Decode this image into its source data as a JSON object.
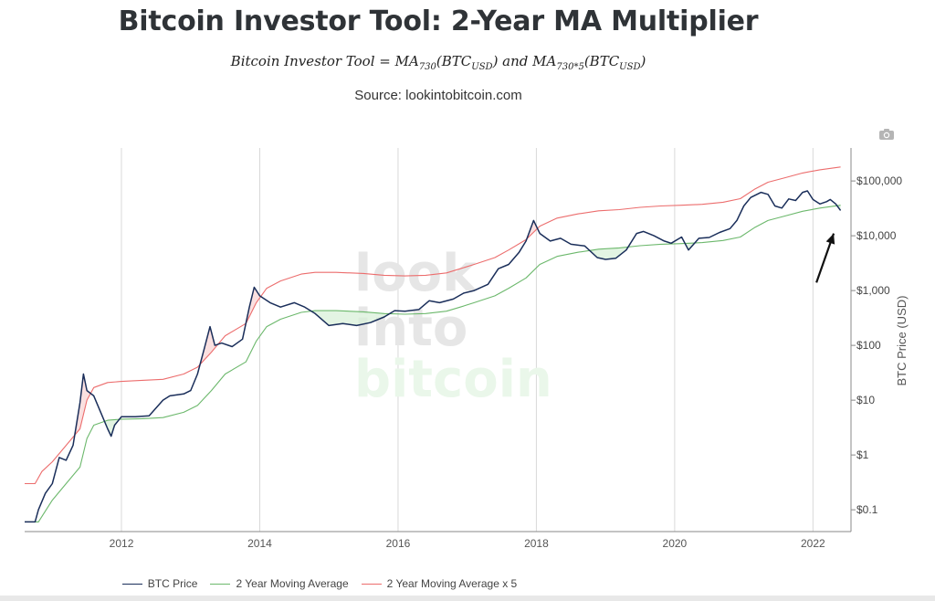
{
  "header": {
    "title": "Bitcoin Investor Tool: 2-Year MA Multiplier",
    "formula_prefix": "Bitcoin Investor Tool = MA",
    "formula_sub1": "730",
    "formula_mid": "(BTC",
    "formula_sub2": "USD",
    "formula_and": ") and MA",
    "formula_sub3": "730*5",
    "formula_mid2": "(BTC",
    "formula_sub4": "USD",
    "formula_end": ")",
    "source": "Source: lookintobitcoin.com"
  },
  "watermark": {
    "line1": "look",
    "line2": "into",
    "line3": "bitcoin"
  },
  "colors": {
    "btc": "#1a2e5a",
    "ma": "#6cb86c",
    "ma5": "#ec6d6d",
    "grid": "#d9d9d9",
    "fill_green": "#d7f0d7",
    "fill_red": "#f8d3d3"
  },
  "icons": {
    "camera": "camera-icon",
    "arrow": "arrow-annotation-icon"
  },
  "chart_data": {
    "type": "line",
    "title": "Bitcoin Investor Tool: 2-Year MA Multiplier",
    "xlabel": "",
    "ylabel": "BTC Price (USD)",
    "y_scale": "log",
    "xlim": [
      2010.6,
      2022.55
    ],
    "ylim": [
      0.04,
      400000
    ],
    "x_ticks": [
      2012,
      2014,
      2016,
      2018,
      2020,
      2022
    ],
    "x_tick_labels": [
      "2012",
      "2014",
      "2016",
      "2018",
      "2020",
      "2022"
    ],
    "y_ticks": [
      0.1,
      1,
      10,
      100,
      1000,
      10000,
      100000
    ],
    "y_tick_labels": [
      "$0.1",
      "$1",
      "$10",
      "$100",
      "$1,000",
      "$10,000",
      "$100,000"
    ],
    "grid": "vertical",
    "legend": "bottom-center",
    "series": [
      {
        "name": "BTC Price",
        "color": "#1a2e5a",
        "points": [
          [
            2010.6,
            0.06
          ],
          [
            2010.75,
            0.06
          ],
          [
            2010.8,
            0.1
          ],
          [
            2010.9,
            0.2
          ],
          [
            2011.0,
            0.3
          ],
          [
            2011.1,
            0.9
          ],
          [
            2011.2,
            0.8
          ],
          [
            2011.3,
            1.5
          ],
          [
            2011.4,
            9
          ],
          [
            2011.45,
            30
          ],
          [
            2011.5,
            15
          ],
          [
            2011.6,
            12
          ],
          [
            2011.7,
            6
          ],
          [
            2011.8,
            3
          ],
          [
            2011.85,
            2.2
          ],
          [
            2011.9,
            3.5
          ],
          [
            2012.0,
            5
          ],
          [
            2012.2,
            5
          ],
          [
            2012.4,
            5.2
          ],
          [
            2012.6,
            10
          ],
          [
            2012.7,
            12
          ],
          [
            2012.9,
            13
          ],
          [
            2013.0,
            15
          ],
          [
            2013.1,
            30
          ],
          [
            2013.2,
            90
          ],
          [
            2013.28,
            220
          ],
          [
            2013.35,
            100
          ],
          [
            2013.45,
            110
          ],
          [
            2013.6,
            95
          ],
          [
            2013.75,
            130
          ],
          [
            2013.85,
            500
          ],
          [
            2013.92,
            1150
          ],
          [
            2014.0,
            800
          ],
          [
            2014.15,
            600
          ],
          [
            2014.3,
            500
          ],
          [
            2014.5,
            600
          ],
          [
            2014.65,
            500
          ],
          [
            2014.8,
            380
          ],
          [
            2015.0,
            230
          ],
          [
            2015.2,
            250
          ],
          [
            2015.4,
            230
          ],
          [
            2015.6,
            260
          ],
          [
            2015.8,
            330
          ],
          [
            2015.95,
            430
          ],
          [
            2016.1,
            420
          ],
          [
            2016.3,
            450
          ],
          [
            2016.45,
            650
          ],
          [
            2016.6,
            600
          ],
          [
            2016.8,
            700
          ],
          [
            2016.95,
            900
          ],
          [
            2017.1,
            1000
          ],
          [
            2017.3,
            1300
          ],
          [
            2017.45,
            2500
          ],
          [
            2017.6,
            3000
          ],
          [
            2017.75,
            5000
          ],
          [
            2017.85,
            8000
          ],
          [
            2017.96,
            19000
          ],
          [
            2018.05,
            11000
          ],
          [
            2018.2,
            8000
          ],
          [
            2018.35,
            9000
          ],
          [
            2018.5,
            7000
          ],
          [
            2018.7,
            6500
          ],
          [
            2018.88,
            4000
          ],
          [
            2019.0,
            3700
          ],
          [
            2019.15,
            3900
          ],
          [
            2019.3,
            5500
          ],
          [
            2019.45,
            11000
          ],
          [
            2019.55,
            12000
          ],
          [
            2019.7,
            10000
          ],
          [
            2019.85,
            8000
          ],
          [
            2019.95,
            7300
          ],
          [
            2020.1,
            9500
          ],
          [
            2020.2,
            5500
          ],
          [
            2020.35,
            9000
          ],
          [
            2020.5,
            9300
          ],
          [
            2020.65,
            11500
          ],
          [
            2020.8,
            13500
          ],
          [
            2020.9,
            19000
          ],
          [
            2021.0,
            35000
          ],
          [
            2021.1,
            50000
          ],
          [
            2021.25,
            62000
          ],
          [
            2021.35,
            57000
          ],
          [
            2021.45,
            35000
          ],
          [
            2021.55,
            32000
          ],
          [
            2021.65,
            47000
          ],
          [
            2021.75,
            44000
          ],
          [
            2021.85,
            62000
          ],
          [
            2021.92,
            66000
          ],
          [
            2022.0,
            46000
          ],
          [
            2022.1,
            38000
          ],
          [
            2022.2,
            42000
          ],
          [
            2022.25,
            46000
          ],
          [
            2022.33,
            38000
          ],
          [
            2022.4,
            29000
          ]
        ]
      },
      {
        "name": "2 Year Moving Average",
        "color": "#6cb86c",
        "points": [
          [
            2010.6,
            0.06
          ],
          [
            2010.8,
            0.06
          ],
          [
            2011.0,
            0.15
          ],
          [
            2011.2,
            0.3
          ],
          [
            2011.4,
            0.6
          ],
          [
            2011.5,
            2
          ],
          [
            2011.6,
            3.5
          ],
          [
            2011.8,
            4.3
          ],
          [
            2012.0,
            4.5
          ],
          [
            2012.3,
            4.6
          ],
          [
            2012.6,
            4.8
          ],
          [
            2012.9,
            6
          ],
          [
            2013.1,
            8
          ],
          [
            2013.3,
            15
          ],
          [
            2013.5,
            30
          ],
          [
            2013.8,
            50
          ],
          [
            2013.95,
            120
          ],
          [
            2014.1,
            220
          ],
          [
            2014.3,
            300
          ],
          [
            2014.6,
            400
          ],
          [
            2014.8,
            430
          ],
          [
            2015.1,
            430
          ],
          [
            2015.5,
            410
          ],
          [
            2015.8,
            380
          ],
          [
            2016.1,
            370
          ],
          [
            2016.4,
            380
          ],
          [
            2016.7,
            420
          ],
          [
            2016.9,
            500
          ],
          [
            2017.1,
            600
          ],
          [
            2017.4,
            800
          ],
          [
            2017.6,
            1100
          ],
          [
            2017.85,
            1700
          ],
          [
            2018.05,
            3000
          ],
          [
            2018.3,
            4200
          ],
          [
            2018.6,
            5000
          ],
          [
            2018.9,
            5700
          ],
          [
            2019.2,
            6000
          ],
          [
            2019.5,
            6600
          ],
          [
            2019.8,
            7000
          ],
          [
            2020.1,
            7200
          ],
          [
            2020.4,
            7500
          ],
          [
            2020.7,
            8200
          ],
          [
            2020.95,
            9500
          ],
          [
            2021.15,
            14000
          ],
          [
            2021.35,
            19000
          ],
          [
            2021.6,
            23000
          ],
          [
            2021.85,
            28000
          ],
          [
            2022.1,
            32000
          ],
          [
            2022.4,
            36000
          ]
        ]
      },
      {
        "name": "2 Year Moving Average x 5",
        "color": "#ec6d6d",
        "points": [
          [
            2010.6,
            0.3
          ],
          [
            2010.75,
            0.3
          ],
          [
            2010.85,
            0.5
          ],
          [
            2011.0,
            0.75
          ],
          [
            2011.2,
            1.5
          ],
          [
            2011.4,
            3
          ],
          [
            2011.5,
            10
          ],
          [
            2011.6,
            17
          ],
          [
            2011.8,
            21
          ],
          [
            2012.0,
            22
          ],
          [
            2012.3,
            23
          ],
          [
            2012.6,
            24
          ],
          [
            2012.9,
            30
          ],
          [
            2013.1,
            40
          ],
          [
            2013.3,
            75
          ],
          [
            2013.5,
            150
          ],
          [
            2013.8,
            250
          ],
          [
            2013.95,
            600
          ],
          [
            2014.1,
            1100
          ],
          [
            2014.3,
            1500
          ],
          [
            2014.6,
            2000
          ],
          [
            2014.8,
            2150
          ],
          [
            2015.1,
            2150
          ],
          [
            2015.5,
            2050
          ],
          [
            2015.8,
            1900
          ],
          [
            2016.1,
            1850
          ],
          [
            2016.4,
            1900
          ],
          [
            2016.7,
            2100
          ],
          [
            2016.9,
            2500
          ],
          [
            2017.1,
            3000
          ],
          [
            2017.4,
            4000
          ],
          [
            2017.6,
            5500
          ],
          [
            2017.85,
            8500
          ],
          [
            2018.05,
            15000
          ],
          [
            2018.3,
            21000
          ],
          [
            2018.6,
            25000
          ],
          [
            2018.9,
            28500
          ],
          [
            2019.2,
            30000
          ],
          [
            2019.5,
            33000
          ],
          [
            2019.8,
            35000
          ],
          [
            2020.1,
            36000
          ],
          [
            2020.4,
            37500
          ],
          [
            2020.7,
            41000
          ],
          [
            2020.95,
            47500
          ],
          [
            2021.15,
            70000
          ],
          [
            2021.35,
            95000
          ],
          [
            2021.6,
            115000
          ],
          [
            2021.85,
            140000
          ],
          [
            2022.1,
            160000
          ],
          [
            2022.4,
            180000
          ]
        ]
      }
    ],
    "annotations": [
      {
        "type": "arrow",
        "from": [
          2022.05,
          1400
        ],
        "to": [
          2022.3,
          11000
        ]
      }
    ]
  }
}
